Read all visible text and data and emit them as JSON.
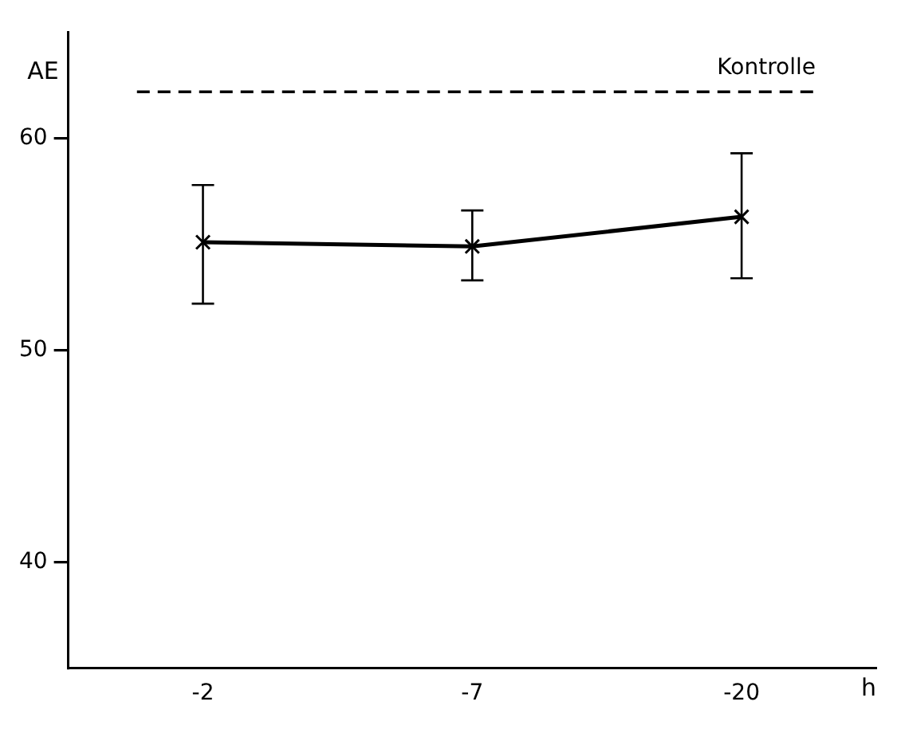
{
  "chart_data": {
    "type": "line",
    "ylabel": "AE",
    "xlabel": "h",
    "categories": [
      "-2",
      "-7",
      "-20"
    ],
    "series": [
      {
        "color": "#000000",
        "values": [
          55.1,
          54.9,
          56.3
        ],
        "errors": [
          [
            52.2,
            57.8
          ],
          [
            53.3,
            56.6
          ],
          [
            53.4,
            59.3
          ]
        ]
      }
    ],
    "ylim": [
      35,
      65
    ],
    "yticks": [
      40,
      50,
      60
    ],
    "ref_lines": [
      {
        "axis": "y",
        "value": 62.2,
        "label": "Kontrolle",
        "line_style": "dashed",
        "color": "#000000"
      }
    ],
    "marker": "cross",
    "line_style": "solid",
    "grid": false,
    "legend": false
  }
}
